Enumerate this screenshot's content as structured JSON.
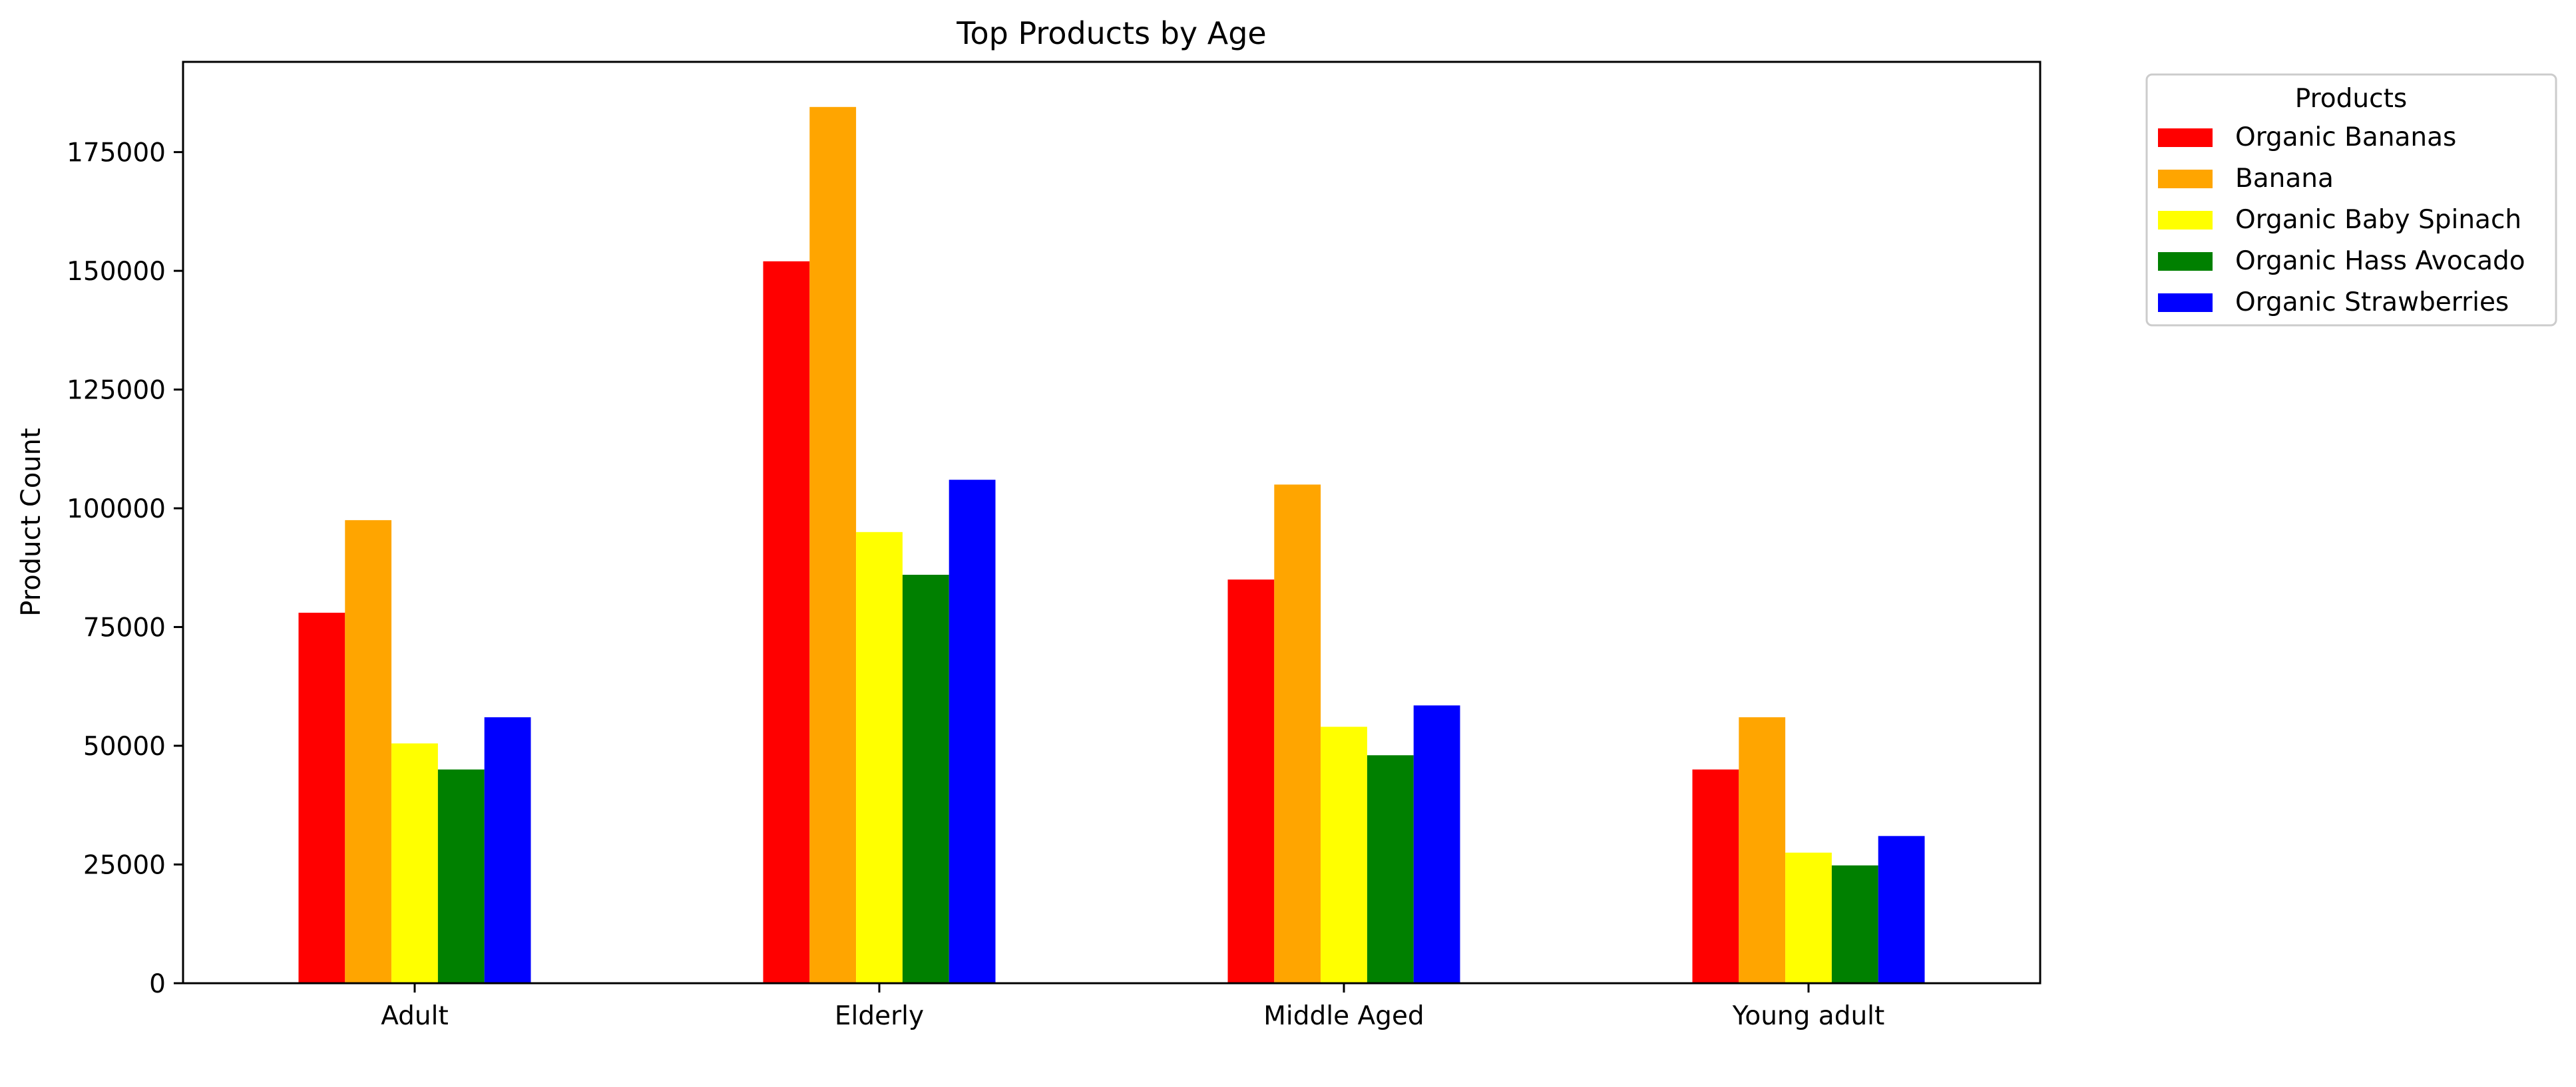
{
  "chart_data": {
    "type": "bar",
    "title": "Top Products by Age",
    "xlabel": "",
    "ylabel": "Product Count",
    "categories": [
      "Adult",
      "Elderly",
      "Middle Aged",
      "Young adult"
    ],
    "series": [
      {
        "name": "Organic Bananas",
        "color": "#ff0000",
        "values": [
          78000,
          152000,
          85000,
          45000
        ]
      },
      {
        "name": "Banana",
        "color": "#ffa500",
        "values": [
          97500,
          184500,
          105000,
          56000
        ]
      },
      {
        "name": "Organic Baby Spinach",
        "color": "#ffff00",
        "values": [
          50500,
          95000,
          54000,
          27500
        ]
      },
      {
        "name": "Organic Hass Avocado",
        "color": "#008000",
        "values": [
          45000,
          86000,
          48000,
          24800
        ]
      },
      {
        "name": "Organic Strawberries",
        "color": "#0000ff",
        "values": [
          56000,
          106000,
          58500,
          31000
        ]
      }
    ],
    "ylim": [
      0,
      194000
    ],
    "yticks": [
      0,
      25000,
      50000,
      75000,
      100000,
      125000,
      150000,
      175000
    ],
    "legend": {
      "title": "Products",
      "placement": "outside-top-right"
    },
    "grid": false
  }
}
